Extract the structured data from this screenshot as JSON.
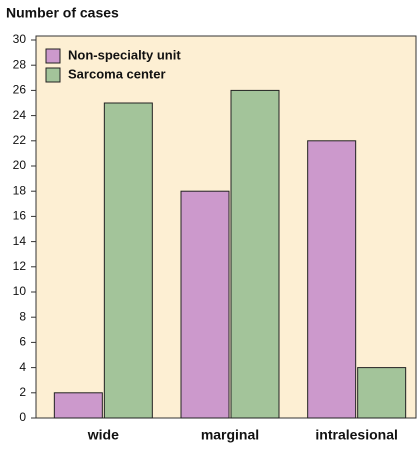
{
  "chart_data": {
    "type": "bar",
    "title": "Number of cases",
    "categories": [
      "wide",
      "marginal",
      "intralesional"
    ],
    "series": [
      {
        "name": "Non-specialty unit",
        "color": "#cc99cc",
        "values": [
          2,
          18,
          22
        ]
      },
      {
        "name": "Sarcoma center",
        "color": "#a3c49a",
        "values": [
          25,
          26,
          4
        ]
      }
    ],
    "ylim": [
      0,
      30
    ],
    "yticks": [
      0,
      2,
      4,
      6,
      8,
      10,
      12,
      14,
      16,
      18,
      20,
      22,
      24,
      26,
      28,
      30
    ],
    "legend": "upper left"
  }
}
